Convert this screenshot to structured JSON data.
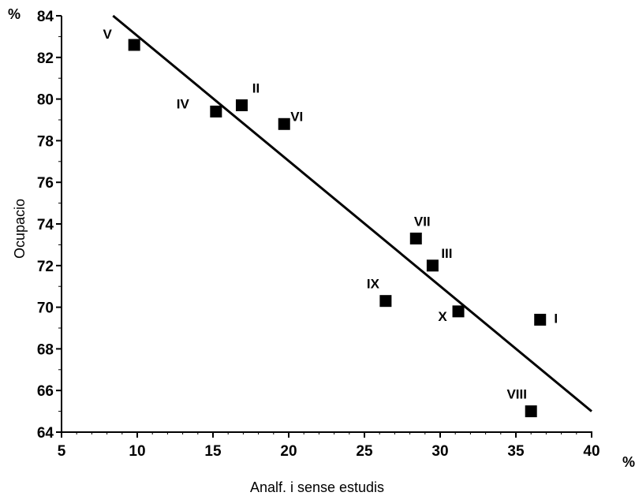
{
  "chart_data": {
    "type": "scatter",
    "title": "",
    "xlabel": "Analf. i sense estudis",
    "ylabel": "Ocupacio",
    "x_unit": "%",
    "y_unit": "%",
    "xlim": [
      5,
      40
    ],
    "ylim": [
      64,
      84
    ],
    "x_ticks": [
      5,
      10,
      15,
      20,
      25,
      30,
      35,
      40
    ],
    "y_ticks": [
      64,
      66,
      68,
      70,
      72,
      74,
      76,
      78,
      80,
      82,
      84
    ],
    "grid": false,
    "legend": "none",
    "marker": "square",
    "color": "#000000",
    "points": [
      {
        "label": "V",
        "x": 9.8,
        "y": 82.6
      },
      {
        "label": "IV",
        "x": 15.2,
        "y": 79.4
      },
      {
        "label": "II",
        "x": 16.9,
        "y": 79.7
      },
      {
        "label": "VI",
        "x": 19.7,
        "y": 78.8
      },
      {
        "label": "VII",
        "x": 28.4,
        "y": 73.3
      },
      {
        "label": "III",
        "x": 29.5,
        "y": 72.0
      },
      {
        "label": "IX",
        "x": 26.4,
        "y": 70.3
      },
      {
        "label": "X",
        "x": 31.2,
        "y": 69.8
      },
      {
        "label": "I",
        "x": 36.6,
        "y": 69.4
      },
      {
        "label": "VIII",
        "x": 36.0,
        "y": 65.0
      }
    ],
    "trend_line": {
      "x": [
        8.4,
        40.0
      ],
      "y": [
        84.0,
        65.0
      ]
    }
  }
}
